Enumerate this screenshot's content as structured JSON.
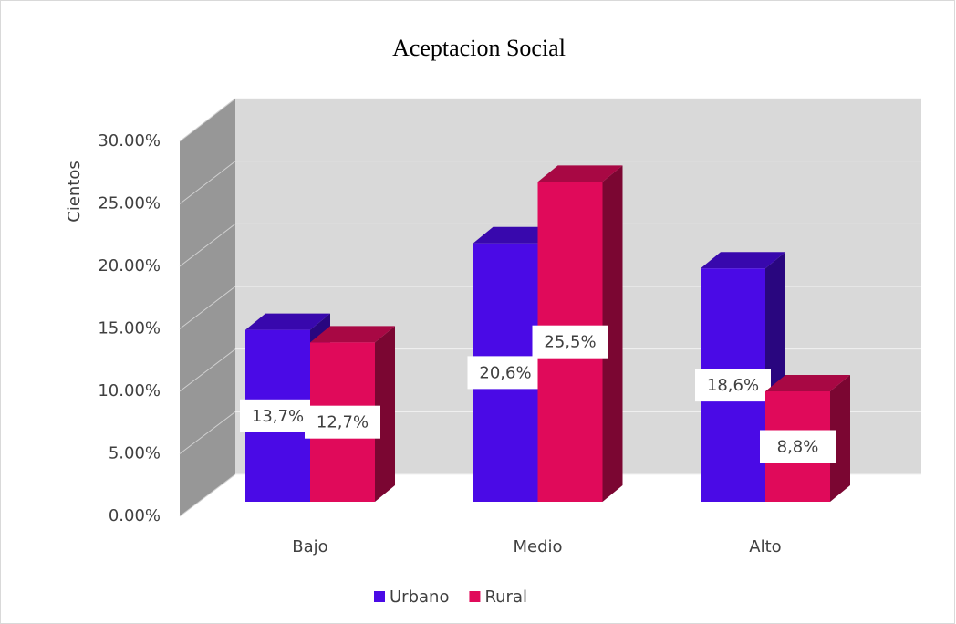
{
  "chart_data": {
    "type": "bar3d",
    "title": "Aceptacion Social",
    "y_label": "Cientos",
    "categories": [
      "Bajo",
      "Medio",
      "Alto"
    ],
    "series": [
      {
        "name": "Urbano",
        "color": "#4a0ae6",
        "values": [
          13.7,
          20.6,
          18.6
        ],
        "value_labels": [
          "13,7%",
          "20,6%",
          "18,6%"
        ]
      },
      {
        "name": "Rural",
        "color": "#e00a5a",
        "values": [
          12.7,
          25.5,
          8.8
        ],
        "value_labels": [
          "12,7%",
          "25,5%",
          "8,8%"
        ]
      }
    ],
    "ylim": [
      0,
      30
    ],
    "yticks": [
      {
        "value": 0,
        "label": "0.00%"
      },
      {
        "value": 5,
        "label": "5.00%"
      },
      {
        "value": 10,
        "label": "10.00%"
      },
      {
        "value": 15,
        "label": "15.00%"
      },
      {
        "value": 20,
        "label": "20.00%"
      },
      {
        "value": 25,
        "label": "25.00%"
      },
      {
        "value": 30,
        "label": "30.00%"
      }
    ],
    "grid": true,
    "legend": "bottom"
  }
}
